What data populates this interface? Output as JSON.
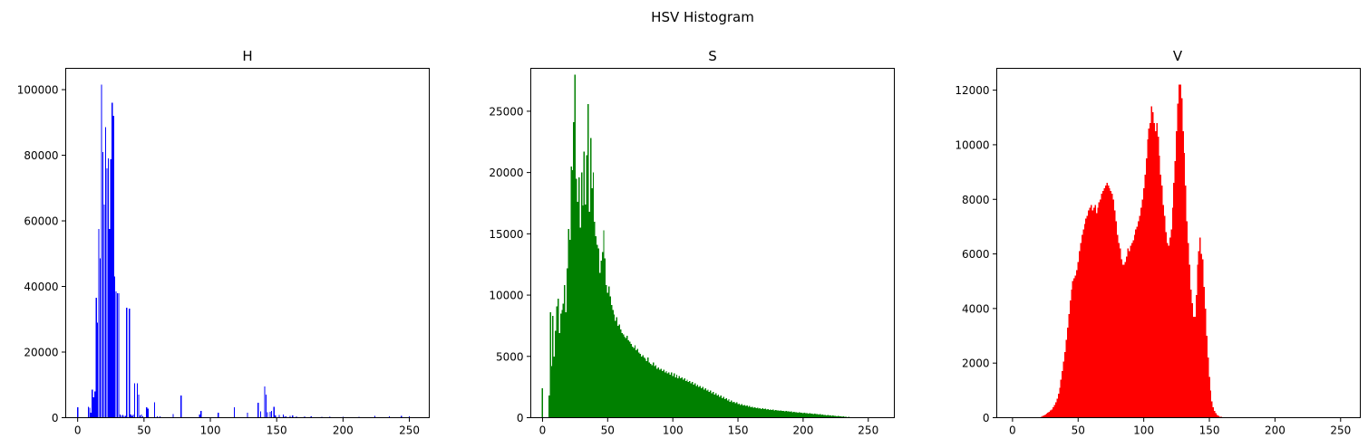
{
  "figure_title": "HSV Histogram",
  "chart_data": [
    {
      "type": "bar",
      "title": "H",
      "color": "#0000ff",
      "xlabel": "",
      "ylabel": "",
      "xlim": [
        -9,
        265
      ],
      "ylim": [
        0,
        106500
      ],
      "xticks": [
        0,
        50,
        100,
        150,
        200,
        250
      ],
      "yticks": [
        0,
        20000,
        40000,
        60000,
        80000,
        100000
      ],
      "x": [
        0,
        8,
        9,
        10,
        11,
        12,
        13,
        14,
        15,
        16,
        17,
        18,
        19,
        20,
        21,
        22,
        23,
        24,
        25,
        26,
        27,
        28,
        29,
        30,
        31,
        32,
        33,
        34,
        35,
        36,
        37,
        39,
        40,
        41,
        42,
        43,
        45,
        46,
        47,
        48,
        49,
        52,
        53,
        58,
        60,
        62,
        72,
        78,
        92,
        93,
        106,
        118,
        128,
        136,
        138,
        141,
        142,
        143,
        145,
        146,
        148,
        149,
        152,
        155,
        156,
        157,
        160,
        162,
        165,
        171,
        176,
        184,
        190,
        200,
        212,
        224,
        235,
        244,
        250
      ],
      "values": [
        3200,
        3300,
        3000,
        1500,
        8500,
        6200,
        8000,
        36500,
        29000,
        57500,
        48500,
        101500,
        81000,
        65000,
        88500,
        76000,
        79000,
        57500,
        78800,
        96000,
        92000,
        43000,
        38500,
        38000,
        38000,
        1000,
        700,
        800,
        600,
        600,
        33500,
        33300,
        1000,
        500,
        900,
        10500,
        10500,
        7000,
        700,
        900,
        400,
        3200,
        2800,
        4700,
        400,
        400,
        1100,
        6800,
        1000,
        2100,
        1500,
        3200,
        1500,
        4500,
        2000,
        9500,
        7000,
        1600,
        1800,
        2100,
        3300,
        700,
        800,
        1000,
        400,
        400,
        500,
        700,
        400,
        400,
        400,
        300,
        300,
        300,
        300,
        600,
        400,
        500,
        400
      ]
    },
    {
      "type": "bar",
      "title": "S",
      "color": "#008000",
      "xlabel": "",
      "ylabel": "",
      "xlim": [
        -9,
        270
      ],
      "ylim": [
        0,
        28500
      ],
      "xticks": [
        0,
        50,
        100,
        150,
        200,
        250
      ],
      "yticks": [
        0,
        5000,
        10000,
        15000,
        20000,
        25000
      ],
      "values": [
        2400,
        0,
        0,
        0,
        0,
        1800,
        8600,
        4200,
        8300,
        5000,
        7100,
        9100,
        9700,
        6900,
        8500,
        8800,
        9300,
        10800,
        8600,
        12200,
        15400,
        14500,
        20500,
        20200,
        24100,
        28000,
        19500,
        17600,
        19600,
        15500,
        20000,
        17300,
        21700,
        17400,
        21400,
        25600,
        16800,
        22800,
        18700,
        20000,
        16000,
        14800,
        14100,
        13800,
        11800,
        12800,
        13500,
        15300,
        13000,
        10800,
        10200,
        10700,
        9900,
        9200,
        8800,
        8400,
        7900,
        8200,
        7500,
        7600,
        7200,
        6900,
        6800,
        6600,
        6500,
        6700,
        6300,
        6200,
        6000,
        5800,
        5700,
        5900,
        5500,
        5600,
        5300,
        5200,
        5000,
        5100,
        4900,
        4800,
        4600,
        4900,
        4500,
        4400,
        4300,
        4500,
        4200,
        4300,
        4000,
        4100,
        3900,
        4000,
        3800,
        3900,
        3700,
        3800,
        3600,
        3700,
        3500,
        3700,
        3400,
        3600,
        3300,
        3500,
        3200,
        3400,
        3200,
        3300,
        3100,
        3200,
        3000,
        3100,
        2900,
        3000,
        2800,
        2900,
        2700,
        2800,
        2600,
        2700,
        2500,
        2600,
        2400,
        2500,
        2300,
        2400,
        2200,
        2300,
        2100,
        2200,
        2000,
        2100,
        1900,
        2000,
        1800,
        1900,
        1700,
        1800,
        1600,
        1700,
        1500,
        1600,
        1400,
        1500,
        1300,
        1400,
        1250,
        1300,
        1200,
        1250,
        1100,
        1150,
        1050,
        1100,
        1000,
        1050,
        950,
        1000,
        900,
        950,
        850,
        900,
        800,
        850,
        780,
        820,
        750,
        790,
        720,
        760,
        700,
        730,
        670,
        700,
        640,
        680,
        620,
        650,
        600,
        630,
        580,
        600,
        560,
        580,
        540,
        560,
        520,
        540,
        500,
        520,
        480,
        500,
        460,
        480,
        440,
        460,
        420,
        440,
        400,
        420,
        380,
        400,
        360,
        380,
        340,
        360,
        320,
        340,
        300,
        320,
        280,
        300,
        260,
        280,
        240,
        260,
        220,
        240,
        200,
        220,
        180,
        200,
        160,
        180,
        140,
        160,
        120,
        140,
        100,
        120,
        80,
        100,
        60,
        80,
        50,
        60,
        40,
        50,
        30,
        40,
        25,
        30,
        20,
        25,
        15,
        20,
        10,
        15,
        8,
        10,
        6,
        8,
        4,
        6,
        3,
        4,
        2,
        3,
        2,
        2,
        1,
        2,
        1,
        1,
        1,
        1,
        0,
        1,
        0,
        0,
        0,
        0,
        0,
        0
      ]
    },
    {
      "type": "bar",
      "title": "V",
      "color": "#ff0000",
      "xlabel": "",
      "ylabel": "",
      "xlim": [
        -12,
        265
      ],
      "ylim": [
        0,
        12800
      ],
      "xticks": [
        0,
        50,
        100,
        150,
        200,
        250
      ],
      "yticks": [
        0,
        2000,
        4000,
        6000,
        8000,
        10000,
        12000
      ],
      "values": [
        0,
        0,
        0,
        0,
        0,
        0,
        0,
        0,
        0,
        0,
        0,
        0,
        0,
        0,
        0,
        0,
        0,
        0,
        0,
        0,
        0,
        20,
        40,
        60,
        90,
        120,
        150,
        180,
        220,
        260,
        300,
        380,
        460,
        560,
        700,
        880,
        1100,
        1400,
        1700,
        2050,
        2400,
        2850,
        3300,
        3800,
        4300,
        4700,
        5000,
        5100,
        5200,
        5400,
        5700,
        6100,
        6400,
        6700,
        6900,
        7100,
        7300,
        7400,
        7600,
        7700,
        7800,
        7600,
        7700,
        7800,
        7500,
        7700,
        7900,
        8000,
        8200,
        8300,
        8400,
        8500,
        8600,
        8500,
        8400,
        8300,
        8200,
        8000,
        7600,
        7200,
        6700,
        6400,
        6200,
        5800,
        5600,
        5600,
        5700,
        5900,
        6200,
        6100,
        6300,
        6400,
        6500,
        6700,
        6900,
        7000,
        7200,
        7400,
        7700,
        8000,
        8400,
        8900,
        9500,
        10200,
        10600,
        10800,
        11400,
        11200,
        10800,
        10500,
        10800,
        10300,
        9600,
        8900,
        8500,
        7800,
        7400,
        6800,
        6400,
        6300,
        6600,
        6900,
        7700,
        8600,
        9400,
        10500,
        11500,
        12200,
        12200,
        11700,
        10500,
        9700,
        8500,
        7200,
        6400,
        5600,
        4700,
        4200,
        3700,
        3700,
        4500,
        5600,
        6100,
        6600,
        6000,
        5800,
        4800,
        4000,
        3000,
        2200,
        1500,
        1000,
        600,
        380,
        250,
        160,
        100,
        60,
        40,
        30,
        20,
        10,
        5,
        0,
        0,
        0,
        0,
        0,
        0,
        0,
        0,
        0,
        0,
        0,
        0,
        0,
        0,
        0,
        0,
        0,
        0,
        0,
        0,
        0,
        0,
        0,
        0,
        0,
        0,
        0,
        0,
        0,
        0,
        0,
        0,
        0,
        0,
        0,
        0,
        0,
        0,
        0,
        0,
        0,
        0,
        0,
        0,
        0,
        0,
        0,
        0,
        0,
        0,
        0,
        0,
        0,
        0,
        0,
        0,
        0,
        0,
        0,
        0,
        0,
        0,
        0,
        0,
        0,
        0,
        0,
        0,
        0,
        0,
        0,
        0,
        0,
        0,
        0,
        0,
        0,
        0,
        0,
        0,
        0,
        0,
        0,
        0,
        0,
        0,
        0,
        0,
        0,
        0,
        0,
        0,
        0,
        0,
        0,
        0,
        0,
        0,
        0,
        0,
        0,
        0,
        0,
        0,
        0
      ]
    }
  ]
}
